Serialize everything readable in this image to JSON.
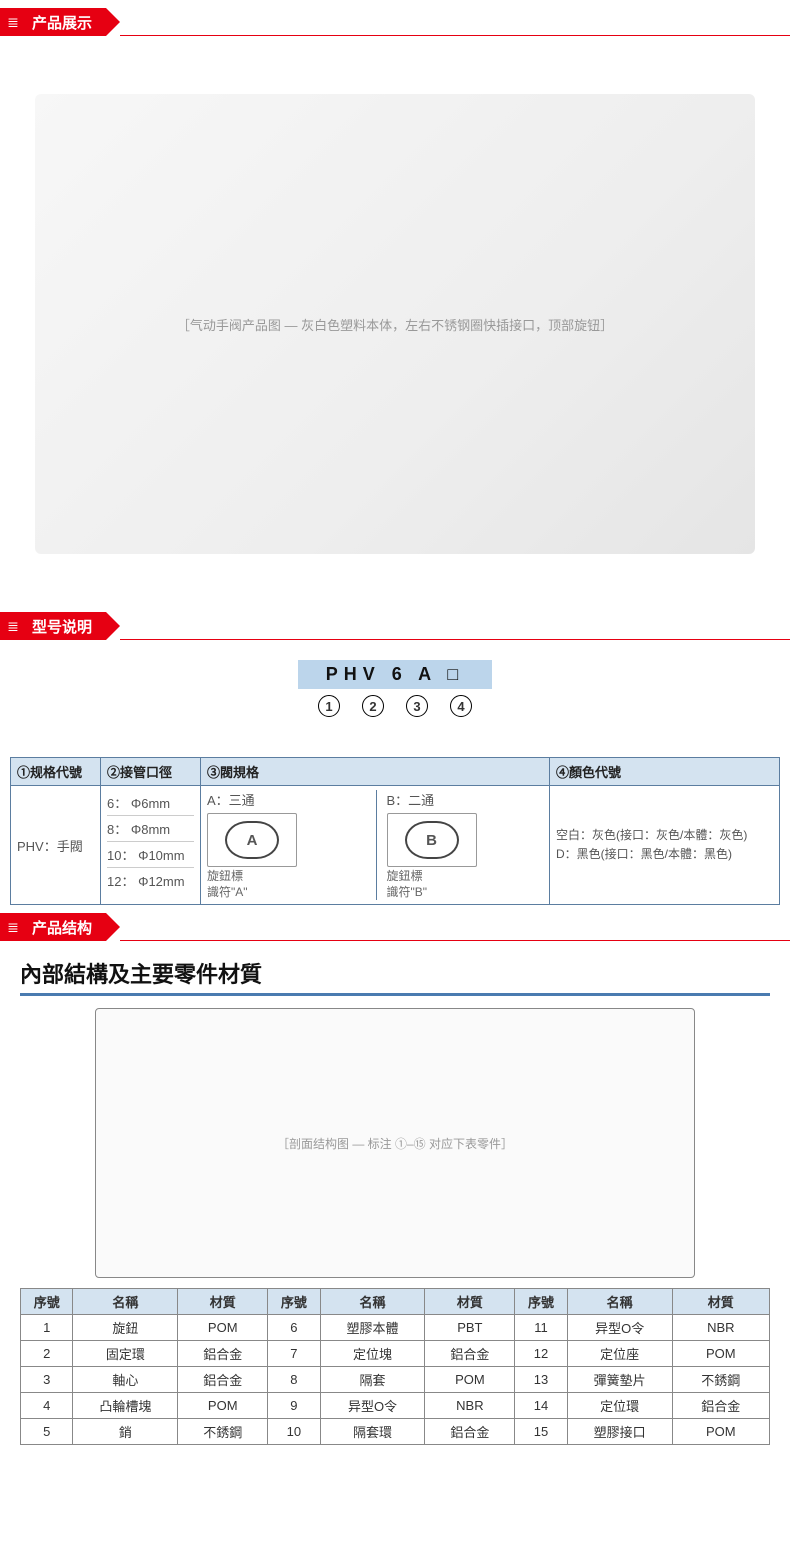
{
  "colors": {
    "brand_red": "#e60012",
    "table_head": "#d4e3f0",
    "border_blue": "#5b7da0"
  },
  "sections": {
    "display": "产品展示",
    "model": "型号说明",
    "structure": "产品结构"
  },
  "product_placeholder": "［气动手阀产品图 — 灰白色塑料本体，左右不锈钢圈快插接口，顶部旋钮］",
  "model_code": {
    "code": "PHV 6 A □",
    "numbers": [
      "1",
      "2",
      "3",
      "4"
    ]
  },
  "model_table": {
    "headers": [
      "①规格代號",
      "②接管口徑",
      "③閥規格",
      "④顏色代號"
    ],
    "col1": {
      "label": "PHV：手閥"
    },
    "col2": [
      "6： Φ6mm",
      "8： Φ8mm",
      "10： Φ10mm",
      "12： Φ12mm"
    ],
    "col3": {
      "a": {
        "title": "A：三通",
        "knob": "A",
        "note": "旋鈕標\n識符\"A\""
      },
      "b": {
        "title": "B：二通",
        "knob": "B",
        "note": "旋鈕標\n識符\"B\""
      }
    },
    "col4": [
      "空白：灰色(接口：灰色/本體：灰色)",
      "D：黑色(接口：黑色/本體：黑色)"
    ]
  },
  "structure": {
    "title": "內部結構及主要零件材質",
    "diagram_label": "［剖面结构图 — 标注 ①–⑮ 对应下表零件］",
    "parts_header": [
      "序號",
      "名稱",
      "材質",
      "序號",
      "名稱",
      "材質",
      "序號",
      "名稱",
      "材質"
    ],
    "parts": [
      [
        "1",
        "旋鈕",
        "POM",
        "6",
        "塑膠本體",
        "PBT",
        "11",
        "异型O令",
        "NBR"
      ],
      [
        "2",
        "固定環",
        "鋁合金",
        "7",
        "定位塊",
        "鋁合金",
        "12",
        "定位座",
        "POM"
      ],
      [
        "3",
        "軸心",
        "鋁合金",
        "8",
        "隔套",
        "POM",
        "13",
        "彈簧墊片",
        "不銹鋼"
      ],
      [
        "4",
        "凸輪槽塊",
        "POM",
        "9",
        "异型O令",
        "NBR",
        "14",
        "定位環",
        "鋁合金"
      ],
      [
        "5",
        "銷",
        "不銹鋼",
        "10",
        "隔套環",
        "鋁合金",
        "15",
        "塑膠接口",
        "POM"
      ]
    ]
  }
}
